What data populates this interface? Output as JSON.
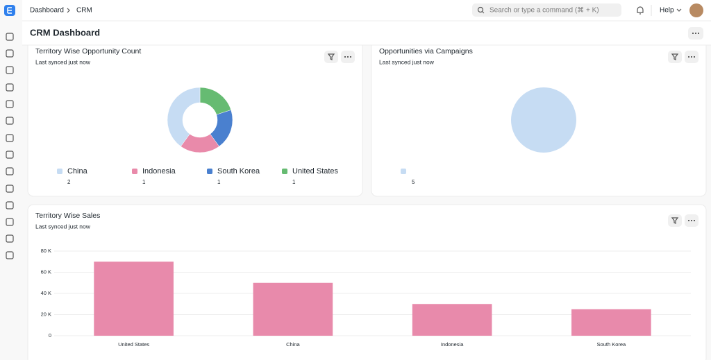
{
  "breadcrumb": [
    "Dashboard",
    "CRM"
  ],
  "search_placeholder": "Search or type a command (⌘ + K)",
  "help": "Help",
  "page_title": "CRM Dashboard",
  "chart_data": [
    {
      "type": "donut",
      "title": "Territory Wise Opportunity Count",
      "subtitle": "Last synced just now",
      "categories": [
        "China",
        "Indonesia",
        "South Korea",
        "United States"
      ],
      "values": [
        2,
        1,
        1,
        1
      ],
      "colors": [
        "#c6dcf3",
        "#e98aaa",
        "#4a80cf",
        "#66bb72"
      ]
    },
    {
      "type": "pie",
      "title": "Opportunities via Campaigns",
      "subtitle": "Last synced just now",
      "categories": [
        null
      ],
      "values": [
        5
      ],
      "colors": [
        "#c6dcf3"
      ]
    },
    {
      "type": "bar",
      "title": "Territory Wise Sales",
      "subtitle": "Last synced just now",
      "categories": [
        "United States",
        "China",
        "Indonesia",
        "South Korea"
      ],
      "values": [
        70000,
        50000,
        30000,
        25000
      ],
      "color": "#e88aab",
      "ylim": [
        0,
        80000
      ],
      "yticks": [
        0,
        {
          "value": 20000,
          "label": "20 K"
        },
        {
          "value": 40000,
          "label": "40 K"
        },
        {
          "value": 60000,
          "label": "60 K"
        },
        {
          "value": 80000,
          "label": "80 K"
        }
      ],
      "grid": true
    }
  ]
}
